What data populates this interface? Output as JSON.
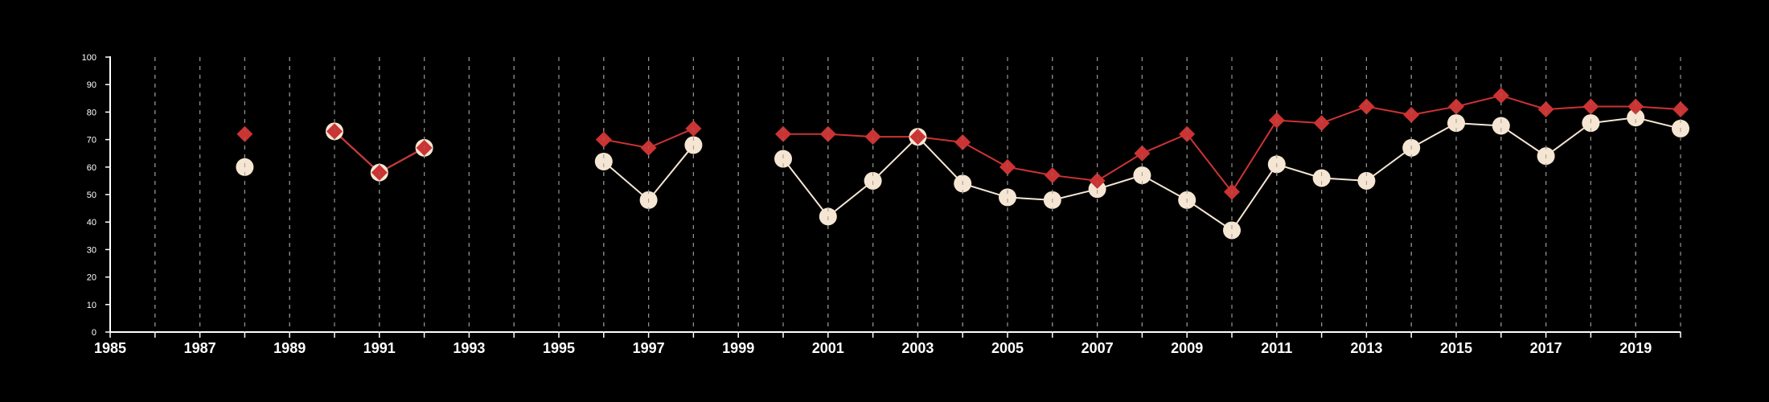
{
  "chart_data": {
    "type": "line",
    "title": "",
    "xlabel": "",
    "ylabel": "",
    "xlim": [
      1985,
      2020
    ],
    "ylim": [
      0,
      100
    ],
    "y_ticks": [
      0,
      10,
      20,
      30,
      40,
      50,
      60,
      70,
      80,
      90,
      100
    ],
    "x_ticks": [
      1985,
      1986,
      1987,
      1988,
      1989,
      1990,
      1991,
      1992,
      1993,
      1994,
      1995,
      1996,
      1997,
      1998,
      1999,
      2000,
      2001,
      2002,
      2003,
      2004,
      2005,
      2006,
      2007,
      2008,
      2009,
      2010,
      2011,
      2012,
      2013,
      2014,
      2015,
      2016,
      2017,
      2018,
      2019,
      2020
    ],
    "x_tick_labels": [
      "1985",
      "",
      "1987",
      "",
      "1989",
      "",
      "1991",
      "",
      "1993",
      "",
      "1995",
      "",
      "1997",
      "",
      "1999",
      "",
      "2001",
      "",
      "2003",
      "",
      "2005",
      "",
      "2007",
      "",
      "2009",
      "",
      "2011",
      "",
      "2013",
      "",
      "2015",
      "",
      "2017",
      "",
      "2019",
      ""
    ],
    "grid": "vertical dashed at every year",
    "legend": "none",
    "series": [
      {
        "marker": "diamond",
        "color": "#cc3333",
        "points": [
          [
            1988,
            72
          ],
          [
            1990,
            73
          ],
          [
            1991,
            58
          ],
          [
            1992,
            67
          ],
          [
            1996,
            70
          ],
          [
            1997,
            67
          ],
          [
            1998,
            74
          ],
          [
            2000,
            72
          ],
          [
            2001,
            72
          ],
          [
            2002,
            71
          ],
          [
            2003,
            71
          ],
          [
            2004,
            69
          ],
          [
            2005,
            60
          ],
          [
            2006,
            57
          ],
          [
            2007,
            55
          ],
          [
            2008,
            65
          ],
          [
            2009,
            72
          ],
          [
            2010,
            51
          ],
          [
            2011,
            77
          ],
          [
            2012,
            76
          ],
          [
            2013,
            82
          ],
          [
            2014,
            79
          ],
          [
            2015,
            82
          ],
          [
            2016,
            86
          ],
          [
            2017,
            81
          ],
          [
            2018,
            82
          ],
          [
            2019,
            82
          ],
          [
            2020,
            81
          ]
        ]
      },
      {
        "marker": "circle",
        "color": "#f5e6d3",
        "points": [
          [
            1988,
            60
          ],
          [
            1990,
            73
          ],
          [
            1991,
            58
          ],
          [
            1992,
            67
          ],
          [
            1996,
            62
          ],
          [
            1997,
            48
          ],
          [
            1998,
            68
          ],
          [
            2000,
            63
          ],
          [
            2001,
            42
          ],
          [
            2002,
            55
          ],
          [
            2003,
            71
          ],
          [
            2004,
            54
          ],
          [
            2005,
            49
          ],
          [
            2006,
            48
          ],
          [
            2007,
            52
          ],
          [
            2008,
            57
          ],
          [
            2009,
            48
          ],
          [
            2010,
            37
          ],
          [
            2011,
            61
          ],
          [
            2012,
            56
          ],
          [
            2013,
            55
          ],
          [
            2014,
            67
          ],
          [
            2015,
            76
          ],
          [
            2016,
            75
          ],
          [
            2017,
            64
          ],
          [
            2018,
            76
          ],
          [
            2019,
            78
          ],
          [
            2020,
            74
          ]
        ]
      }
    ]
  }
}
